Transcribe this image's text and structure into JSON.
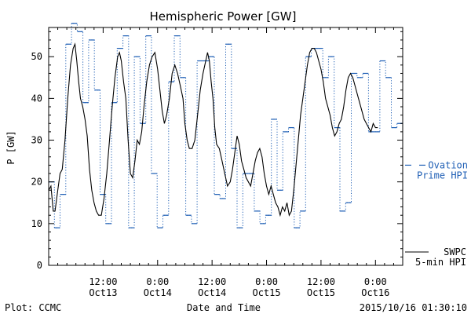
{
  "chart_data": {
    "type": "line",
    "title": "Hemispheric Power [GW]",
    "xlabel": "Date and Time",
    "ylabel": "P [GW]",
    "ylim": [
      0,
      57
    ],
    "xlim_hours": [
      0,
      78
    ],
    "yticks": [
      0,
      10,
      20,
      30,
      40,
      50
    ],
    "xticks": [
      {
        "hour": 12,
        "time": "12:00",
        "date": "Oct13"
      },
      {
        "hour": 24,
        "time": "0:00",
        "date": "Oct14"
      },
      {
        "hour": 36,
        "time": "12:00",
        "date": "Oct14"
      },
      {
        "hour": 48,
        "time": "0:00",
        "date": "Oct15"
      },
      {
        "hour": 60,
        "time": "12:00",
        "date": "Oct15"
      },
      {
        "hour": 72,
        "time": "0:00",
        "date": "Oct16"
      }
    ],
    "series": [
      {
        "name": "SWPC 5-min HPI",
        "label_lines": [
          "SWPC",
          "5-min HPI"
        ],
        "style": "solid",
        "color": "#000000",
        "points": [
          [
            0.0,
            18
          ],
          [
            0.5,
            19
          ],
          [
            1.0,
            13
          ],
          [
            1.4,
            13
          ],
          [
            2.0,
            18
          ],
          [
            2.5,
            22
          ],
          [
            3.0,
            23
          ],
          [
            3.6,
            30
          ],
          [
            4.2,
            40
          ],
          [
            4.8,
            48
          ],
          [
            5.4,
            52
          ],
          [
            5.8,
            53
          ],
          [
            6.2,
            49
          ],
          [
            6.6,
            44
          ],
          [
            7.0,
            40
          ],
          [
            7.5,
            38
          ],
          [
            8.0,
            35
          ],
          [
            8.5,
            31
          ],
          [
            9.0,
            23
          ],
          [
            9.5,
            18
          ],
          [
            10.0,
            15
          ],
          [
            10.5,
            13
          ],
          [
            11.0,
            12
          ],
          [
            11.6,
            12
          ],
          [
            12.2,
            16
          ],
          [
            12.8,
            22
          ],
          [
            13.4,
            30
          ],
          [
            14.0,
            38
          ],
          [
            14.6,
            45
          ],
          [
            15.2,
            50
          ],
          [
            15.6,
            51
          ],
          [
            16.0,
            49
          ],
          [
            16.5,
            44
          ],
          [
            17.0,
            40
          ],
          [
            17.5,
            30
          ],
          [
            18.0,
            22
          ],
          [
            18.5,
            21
          ],
          [
            19.0,
            25
          ],
          [
            19.5,
            30
          ],
          [
            20.0,
            29
          ],
          [
            20.5,
            32
          ],
          [
            21.0,
            38
          ],
          [
            21.6,
            44
          ],
          [
            22.2,
            48
          ],
          [
            22.8,
            50
          ],
          [
            23.4,
            51
          ],
          [
            24.0,
            47
          ],
          [
            24.5,
            42
          ],
          [
            25.0,
            37
          ],
          [
            25.5,
            34
          ],
          [
            26.0,
            36
          ],
          [
            26.6,
            40
          ],
          [
            27.2,
            46
          ],
          [
            27.8,
            48
          ],
          [
            28.4,
            46
          ],
          [
            29.0,
            43
          ],
          [
            29.6,
            40
          ],
          [
            30.0,
            34
          ],
          [
            30.5,
            30
          ],
          [
            31.0,
            28
          ],
          [
            31.6,
            28
          ],
          [
            32.2,
            30
          ],
          [
            32.8,
            36
          ],
          [
            33.4,
            42
          ],
          [
            34.0,
            46
          ],
          [
            34.6,
            49
          ],
          [
            35.0,
            51
          ],
          [
            35.4,
            49
          ],
          [
            35.8,
            44
          ],
          [
            36.2,
            40
          ],
          [
            36.6,
            33
          ],
          [
            37.0,
            29
          ],
          [
            37.6,
            28
          ],
          [
            38.2,
            25
          ],
          [
            38.8,
            22
          ],
          [
            39.4,
            19
          ],
          [
            40.0,
            20
          ],
          [
            40.5,
            23
          ],
          [
            41.0,
            27
          ],
          [
            41.5,
            31
          ],
          [
            42.0,
            29
          ],
          [
            42.5,
            25
          ],
          [
            43.0,
            23
          ],
          [
            43.5,
            21
          ],
          [
            44.0,
            20
          ],
          [
            44.5,
            19
          ],
          [
            45.0,
            22
          ],
          [
            45.5,
            25
          ],
          [
            46.0,
            27
          ],
          [
            46.5,
            28
          ],
          [
            47.0,
            26
          ],
          [
            47.5,
            22
          ],
          [
            48.0,
            19
          ],
          [
            48.5,
            17
          ],
          [
            49.0,
            19
          ],
          [
            49.5,
            17
          ],
          [
            50.0,
            15
          ],
          [
            50.5,
            14
          ],
          [
            51.0,
            12
          ],
          [
            51.5,
            14
          ],
          [
            52.0,
            13
          ],
          [
            52.5,
            15
          ],
          [
            53.0,
            12
          ],
          [
            53.5,
            13
          ],
          [
            54.0,
            18
          ],
          [
            54.5,
            24
          ],
          [
            55.0,
            30
          ],
          [
            55.5,
            36
          ],
          [
            56.0,
            40
          ],
          [
            56.5,
            44
          ],
          [
            57.0,
            48
          ],
          [
            57.5,
            51
          ],
          [
            58.0,
            52
          ],
          [
            58.5,
            52
          ],
          [
            59.0,
            51
          ],
          [
            59.5,
            49
          ],
          [
            60.0,
            47
          ],
          [
            60.5,
            44
          ],
          [
            61.0,
            40
          ],
          [
            61.5,
            38
          ],
          [
            62.0,
            36
          ],
          [
            62.5,
            33
          ],
          [
            63.0,
            31
          ],
          [
            63.5,
            32
          ],
          [
            64.0,
            34
          ],
          [
            64.5,
            35
          ],
          [
            65.0,
            38
          ],
          [
            65.5,
            42
          ],
          [
            66.0,
            45
          ],
          [
            66.5,
            46
          ],
          [
            67.0,
            45
          ],
          [
            67.5,
            43
          ],
          [
            68.0,
            41
          ],
          [
            68.5,
            39
          ],
          [
            69.0,
            37
          ],
          [
            69.5,
            35
          ],
          [
            70.0,
            34
          ],
          [
            70.5,
            33
          ],
          [
            71.0,
            32
          ],
          [
            71.5,
            34
          ],
          [
            72.0,
            33
          ],
          [
            72.5,
            33
          ]
        ]
      },
      {
        "name": "Ovation Prime HPI",
        "label_lines": [
          "Ovation",
          "Prime HPI"
        ],
        "style": "dashed-step",
        "color": "#1f5fb5",
        "values": [
          20,
          9,
          17,
          53,
          58,
          56,
          39,
          54,
          42,
          17,
          10,
          39,
          52,
          55,
          9,
          50,
          34,
          55,
          22,
          9,
          12,
          44,
          55,
          45,
          12,
          10,
          49,
          49,
          50,
          17,
          16,
          53,
          28,
          9,
          22,
          22,
          13,
          10,
          12,
          35,
          18,
          32,
          33,
          9,
          13,
          50,
          52,
          52,
          45,
          50,
          33,
          13,
          15,
          46,
          45,
          46,
          32,
          32,
          49,
          45,
          33,
          34
        ]
      }
    ]
  },
  "footer": {
    "left": "Plot: CCMC",
    "center": "Date and Time",
    "right": "2015/10/16 01:30:10"
  }
}
